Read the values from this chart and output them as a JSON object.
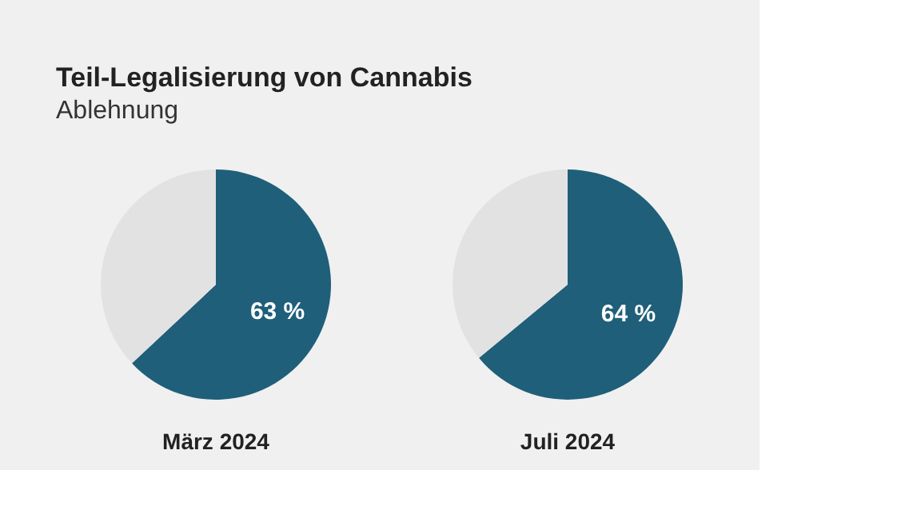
{
  "chart_data": [
    {
      "type": "pie",
      "title": "Teil-Legalisierung von Cannabis",
      "subtitle": "Ablehnung",
      "xlabel": "März 2024",
      "categories": [
        null,
        null
      ],
      "values": [
        63,
        37
      ],
      "colors": [
        "#1f5f7a",
        "#e2e2e2"
      ],
      "value_labels": [
        "63 %",
        null
      ],
      "legend": false
    },
    {
      "type": "pie",
      "xlabel": "Juli 2024",
      "categories": [
        null,
        null
      ],
      "values": [
        64,
        36
      ],
      "colors": [
        "#1f5f7a",
        "#e2e2e2"
      ],
      "value_labels": [
        "64 %",
        null
      ],
      "legend": false
    }
  ]
}
